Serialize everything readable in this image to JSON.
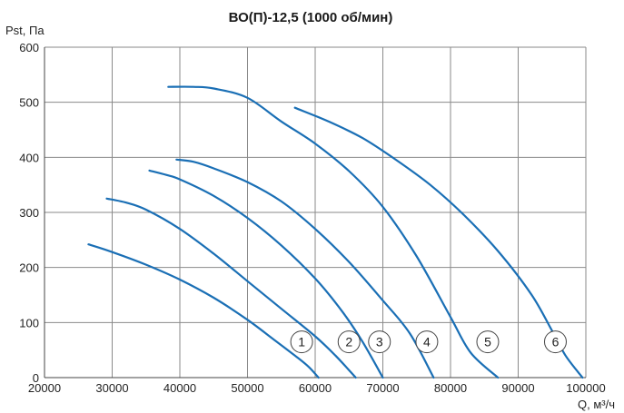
{
  "chart_data": {
    "type": "line",
    "title": "ВО(П)-12,5 (1000 об/мин)",
    "ylabel": "Pst, Па",
    "xlabel": "Q, м³/ч",
    "xlim": [
      20000,
      100000
    ],
    "ylim": [
      0,
      600
    ],
    "xticks": [
      20000,
      30000,
      40000,
      50000,
      60000,
      70000,
      80000,
      90000,
      100000
    ],
    "yticks": [
      0,
      100,
      200,
      300,
      400,
      500,
      600
    ],
    "xtick_labels": [
      "20000",
      "30000",
      "40000",
      "50000",
      "60000",
      "70000",
      "80000",
      "90000",
      "100000"
    ],
    "ytick_labels": [
      "0",
      "100",
      "200",
      "300",
      "400",
      "500",
      "600"
    ],
    "grid": true,
    "line_color": "#1a6fb5",
    "series": [
      {
        "name": "1",
        "points": [
          [
            26500,
            242
          ],
          [
            30000,
            228
          ],
          [
            35000,
            205
          ],
          [
            40000,
            178
          ],
          [
            45000,
            145
          ],
          [
            50000,
            105
          ],
          [
            54000,
            68
          ],
          [
            57000,
            40
          ],
          [
            59000,
            20
          ],
          [
            60500,
            0
          ]
        ],
        "marker_label": "1",
        "marker_at": [
          58000,
          65
        ]
      },
      {
        "name": "2",
        "points": [
          [
            29200,
            325
          ],
          [
            32000,
            318
          ],
          [
            35000,
            305
          ],
          [
            40000,
            270
          ],
          [
            45000,
            225
          ],
          [
            50000,
            175
          ],
          [
            55000,
            125
          ],
          [
            60000,
            75
          ],
          [
            63000,
            40
          ],
          [
            66000,
            0
          ]
        ],
        "marker_label": "2",
        "marker_at": [
          65000,
          65
        ]
      },
      {
        "name": "3",
        "points": [
          [
            35500,
            376
          ],
          [
            38000,
            368
          ],
          [
            40000,
            360
          ],
          [
            45000,
            330
          ],
          [
            50000,
            290
          ],
          [
            55000,
            240
          ],
          [
            60000,
            180
          ],
          [
            64000,
            120
          ],
          [
            67000,
            65
          ],
          [
            70000,
            0
          ]
        ],
        "marker_label": "3",
        "marker_at": [
          69500,
          65
        ]
      },
      {
        "name": "4",
        "points": [
          [
            39500,
            396
          ],
          [
            42000,
            392
          ],
          [
            45000,
            380
          ],
          [
            50000,
            355
          ],
          [
            55000,
            320
          ],
          [
            60000,
            270
          ],
          [
            65000,
            210
          ],
          [
            70000,
            140
          ],
          [
            74000,
            80
          ],
          [
            77500,
            0
          ]
        ],
        "marker_label": "4",
        "marker_at": [
          76500,
          65
        ]
      },
      {
        "name": "5",
        "points": [
          [
            38300,
            528
          ],
          [
            42000,
            528
          ],
          [
            45000,
            525
          ],
          [
            50000,
            508
          ],
          [
            55000,
            465
          ],
          [
            60000,
            425
          ],
          [
            65000,
            375
          ],
          [
            70000,
            310
          ],
          [
            75000,
            220
          ],
          [
            80000,
            110
          ],
          [
            83000,
            45
          ],
          [
            87000,
            0
          ]
        ],
        "marker_label": "5",
        "marker_at": [
          85500,
          65
        ]
      },
      {
        "name": "6",
        "points": [
          [
            57000,
            490
          ],
          [
            62000,
            465
          ],
          [
            67000,
            435
          ],
          [
            72000,
            395
          ],
          [
            77000,
            350
          ],
          [
            82000,
            295
          ],
          [
            87000,
            230
          ],
          [
            92000,
            150
          ],
          [
            95000,
            85
          ],
          [
            97000,
            40
          ],
          [
            99500,
            0
          ]
        ],
        "marker_label": "6",
        "marker_at": [
          95500,
          65
        ]
      }
    ]
  }
}
